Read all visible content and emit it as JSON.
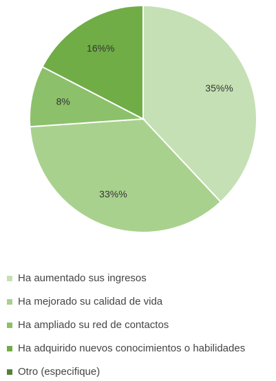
{
  "chart_data": {
    "type": "pie",
    "categories": [
      "Ha aumentado sus ingresos",
      "Ha mejorado su calidad de vida",
      "Ha ampliado su red de contactos",
      "Ha adquirido nuevos conocimientos o habilidades",
      "Otro (especifique)"
    ],
    "values": [
      35,
      33,
      8,
      16,
      0
    ],
    "value_labels": [
      "35%%",
      "33%%",
      "8%",
      "16%%",
      null
    ],
    "colors": [
      "#c5e0b4",
      "#a9d18e",
      "#8cc06a",
      "#70ad47",
      "#548235"
    ]
  }
}
